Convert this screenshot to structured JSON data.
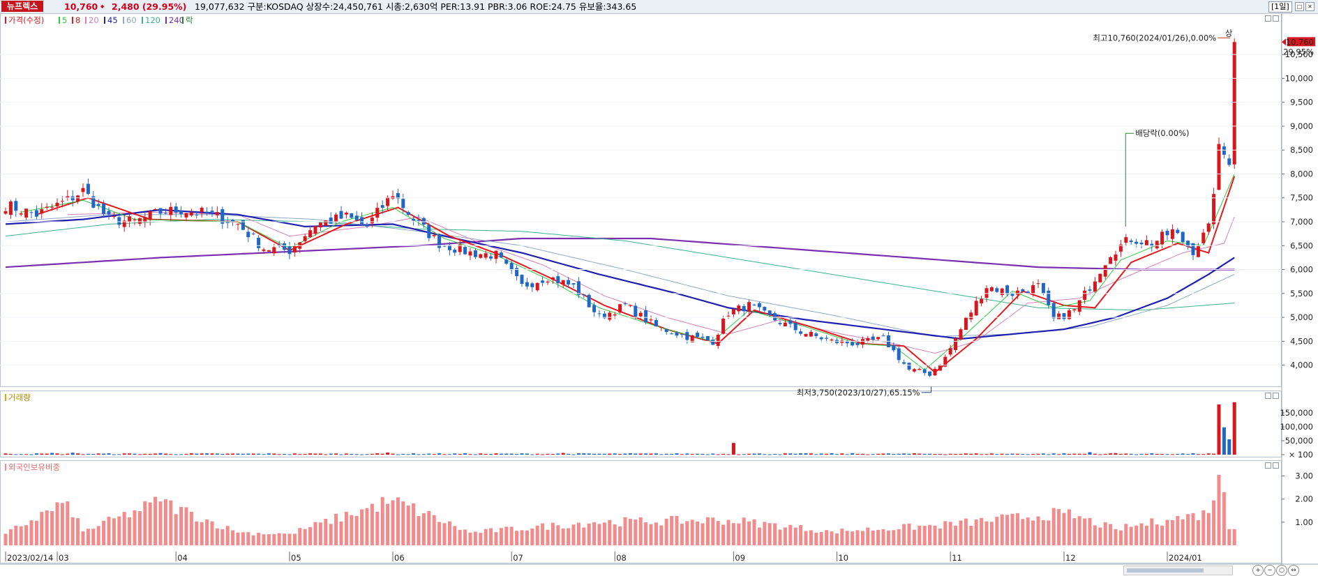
{
  "header": {
    "stock_name": "뉴프렉스",
    "price": "10,760",
    "change": "2,480 (29.95%)",
    "info": "19,077,632   구분:KOSDAQ  상장수:24,450,761  시총:2,630억  PER:13.91  PBR:3.06  ROE:24.75  유보율:343.65",
    "period": "[1일]"
  },
  "colors": {
    "up": "#d8161d",
    "down": "#1f66c5",
    "ma5": "#2ecc40",
    "ma8": "#e31a1c",
    "ma20": "#d97fb8",
    "ma45": "#1f1fb0",
    "ma60": "#8fa8c8",
    "ma120": "#3cb389",
    "ma240": "#7b2fb0",
    "volume_up": "#d8161d",
    "volume_down": "#1f66c5",
    "foreign_bar": "#f28b8b"
  },
  "icons": {
    "up_arrow": "up-arrow-icon",
    "restore": "restore-icon",
    "close": "close-icon",
    "zoom_in": "zoom-in-icon",
    "zoom_out": "zoom-out-icon"
  },
  "chart_data": [
    {
      "type": "candlestick",
      "legend": {
        "price": "가격(수정)",
        "ma": [
          "5",
          "8",
          "20",
          "45",
          "60",
          "120",
          "240"
        ],
        "ex": "락"
      },
      "y_ticks": [
        4000,
        4500,
        5000,
        5500,
        6000,
        6500,
        7000,
        7500,
        8000,
        8500,
        9000,
        9500,
        10000,
        10500
      ],
      "y_tick_labels": [
        "4,000",
        "4,500",
        "5,000",
        "5,500",
        "6,000",
        "6,500",
        "7,000",
        "7,500",
        "8,000",
        "8,500",
        "9,000",
        "9,500",
        "10,000",
        "10,500"
      ],
      "ylim": [
        3630,
        11100
      ],
      "x_labels": [
        "2023/02/14",
        "03",
        "04",
        "05",
        "06",
        "07",
        "08",
        "09",
        "10",
        "11",
        "12",
        "2024/01"
      ],
      "x_label_index": [
        0,
        10,
        33,
        55,
        75,
        98,
        118,
        141,
        161,
        183,
        205,
        225
      ],
      "n_days": 242,
      "current_price_label": "10,760",
      "current_change_label": "29.95%",
      "annotations": {
        "high": "최고10,760(2024/01/26),0.00%",
        "high_tag": "상",
        "low": "최저3,750(2023/10/27),65.15%",
        "dividend": "배당락(0.00%)"
      },
      "anchors": [
        [
          0,
          7350
        ],
        [
          6,
          7150
        ],
        [
          12,
          7450
        ],
        [
          15,
          7650
        ],
        [
          20,
          7050
        ],
        [
          25,
          7000
        ],
        [
          30,
          7200
        ],
        [
          34,
          7250
        ],
        [
          40,
          7150
        ],
        [
          45,
          6950
        ],
        [
          50,
          6450
        ],
        [
          55,
          6400
        ],
        [
          60,
          6950
        ],
        [
          66,
          7100
        ],
        [
          70,
          6900
        ],
        [
          75,
          7600
        ],
        [
          79,
          7050
        ],
        [
          84,
          6550
        ],
        [
          90,
          6350
        ],
        [
          95,
          6300
        ],
        [
          100,
          5650
        ],
        [
          105,
          5850
        ],
        [
          110,
          5650
        ],
        [
          115,
          5000
        ],
        [
          120,
          5250
        ],
        [
          126,
          4800
        ],
        [
          132,
          4600
        ],
        [
          137,
          4500
        ],
        [
          140,
          5100
        ],
        [
          144,
          5250
        ],
        [
          148,
          5000
        ],
        [
          154,
          4700
        ],
        [
          160,
          4500
        ],
        [
          165,
          4450
        ],
        [
          170,
          4550
        ],
        [
          175,
          3900
        ],
        [
          179,
          3820
        ],
        [
          182,
          4150
        ],
        [
          186,
          4950
        ],
        [
          190,
          5650
        ],
        [
          195,
          5500
        ],
        [
          200,
          5650
        ],
        [
          203,
          4950
        ],
        [
          207,
          5150
        ],
        [
          210,
          5650
        ],
        [
          214,
          6350
        ],
        [
          218,
          6650
        ],
        [
          222,
          6550
        ],
        [
          226,
          6800
        ],
        [
          230,
          6400
        ],
        [
          233,
          6850
        ],
        [
          235,
          8500
        ],
        [
          237,
          8300
        ],
        [
          238,
          10760
        ]
      ],
      "ma_anchors": {
        "ma5": [
          [
            3,
            7200
          ],
          [
            15,
            7450
          ],
          [
            25,
            7050
          ],
          [
            45,
            7000
          ],
          [
            55,
            6450
          ],
          [
            65,
            7000
          ],
          [
            75,
            7300
          ],
          [
            85,
            6650
          ],
          [
            95,
            6300
          ],
          [
            105,
            5800
          ],
          [
            115,
            5200
          ],
          [
            128,
            4750
          ],
          [
            137,
            4500
          ],
          [
            144,
            5150
          ],
          [
            155,
            4800
          ],
          [
            165,
            4450
          ],
          [
            172,
            4400
          ],
          [
            178,
            3900
          ],
          [
            186,
            4650
          ],
          [
            195,
            5550
          ],
          [
            203,
            5200
          ],
          [
            210,
            5350
          ],
          [
            216,
            6200
          ],
          [
            225,
            6600
          ],
          [
            232,
            6500
          ],
          [
            238,
            8000
          ]
        ],
        "ma8": [
          [
            6,
            7150
          ],
          [
            16,
            7500
          ],
          [
            28,
            7050
          ],
          [
            45,
            7000
          ],
          [
            55,
            6400
          ],
          [
            66,
            6950
          ],
          [
            76,
            7300
          ],
          [
            86,
            6700
          ],
          [
            96,
            6300
          ],
          [
            106,
            5800
          ],
          [
            116,
            5250
          ],
          [
            128,
            4750
          ],
          [
            138,
            4450
          ],
          [
            145,
            5150
          ],
          [
            156,
            4800
          ],
          [
            166,
            4450
          ],
          [
            174,
            4400
          ],
          [
            180,
            3850
          ],
          [
            188,
            4550
          ],
          [
            197,
            5550
          ],
          [
            205,
            5250
          ],
          [
            211,
            5200
          ],
          [
            218,
            6150
          ],
          [
            227,
            6550
          ],
          [
            233,
            6350
          ],
          [
            238,
            7950
          ]
        ],
        "ma20": [
          [
            12,
            7150
          ],
          [
            28,
            7200
          ],
          [
            45,
            7150
          ],
          [
            55,
            6700
          ],
          [
            70,
            6900
          ],
          [
            80,
            7100
          ],
          [
            92,
            6550
          ],
          [
            104,
            6100
          ],
          [
            116,
            5450
          ],
          [
            128,
            5000
          ],
          [
            140,
            4650
          ],
          [
            150,
            4950
          ],
          [
            162,
            4650
          ],
          [
            172,
            4450
          ],
          [
            180,
            4250
          ],
          [
            188,
            4500
          ],
          [
            198,
            5300
          ],
          [
            208,
            5400
          ],
          [
            216,
            5800
          ],
          [
            228,
            6350
          ],
          [
            236,
            6550
          ],
          [
            238,
            7100
          ]
        ],
        "ma45": [
          [
            0,
            6950
          ],
          [
            15,
            7050
          ],
          [
            30,
            7250
          ],
          [
            45,
            7150
          ],
          [
            58,
            6900
          ],
          [
            75,
            6950
          ],
          [
            85,
            6700
          ],
          [
            100,
            6350
          ],
          [
            115,
            5900
          ],
          [
            130,
            5500
          ],
          [
            140,
            5200
          ],
          [
            155,
            4950
          ],
          [
            170,
            4750
          ],
          [
            185,
            4550
          ],
          [
            195,
            4650
          ],
          [
            205,
            4750
          ],
          [
            215,
            5000
          ],
          [
            225,
            5400
          ],
          [
            233,
            5900
          ],
          [
            238,
            6250
          ]
        ],
        "ma60": [
          [
            0,
            7000
          ],
          [
            20,
            7150
          ],
          [
            40,
            7150
          ],
          [
            60,
            7050
          ],
          [
            80,
            6800
          ],
          [
            100,
            6500
          ],
          [
            120,
            6000
          ],
          [
            140,
            5450
          ],
          [
            160,
            5050
          ],
          [
            180,
            4600
          ],
          [
            195,
            4650
          ],
          [
            210,
            4800
          ],
          [
            225,
            5250
          ],
          [
            238,
            5900
          ]
        ],
        "ma120": [
          [
            0,
            6700
          ],
          [
            20,
            6950
          ],
          [
            40,
            7050
          ],
          [
            60,
            7000
          ],
          [
            80,
            6850
          ],
          [
            100,
            6800
          ],
          [
            120,
            6600
          ],
          [
            140,
            6250
          ],
          [
            160,
            5900
          ],
          [
            180,
            5550
          ],
          [
            200,
            5200
          ],
          [
            220,
            5150
          ],
          [
            238,
            5300
          ]
        ],
        "ma240": [
          [
            0,
            6050
          ],
          [
            30,
            6250
          ],
          [
            60,
            6400
          ],
          [
            80,
            6500
          ],
          [
            100,
            6650
          ],
          [
            125,
            6650
          ],
          [
            150,
            6450
          ],
          [
            175,
            6250
          ],
          [
            200,
            6050
          ],
          [
            220,
            6000
          ],
          [
            238,
            6000
          ]
        ]
      }
    },
    {
      "type": "bar",
      "legend": "거래량",
      "y_ticks": [
        100,
        50000,
        100000,
        150000
      ],
      "y_tick_labels": [
        "× 100",
        "50,000",
        "100,000",
        "150,000"
      ],
      "ylim": [
        0,
        190000
      ],
      "spike_days": [
        [
          9,
          6000
        ],
        [
          13,
          7000
        ],
        [
          30,
          5500
        ],
        [
          74,
          7500
        ],
        [
          108,
          6000
        ],
        [
          141,
          42000
        ],
        [
          210,
          9000
        ],
        [
          215,
          5500
        ],
        [
          235,
          180000
        ],
        [
          236,
          98000
        ],
        [
          237,
          55000
        ],
        [
          238,
          188000
        ]
      ]
    },
    {
      "type": "bar",
      "legend": "외국인보유비중",
      "y_ticks": [
        1.0,
        2.0,
        3.0
      ],
      "y_tick_labels": [
        "1.00",
        "2.00",
        "3.00"
      ],
      "ylim": [
        0,
        3.35
      ],
      "anchors": [
        [
          0,
          0.5
        ],
        [
          12,
          1.9
        ],
        [
          15,
          0.6
        ],
        [
          30,
          1.9
        ],
        [
          45,
          0.55
        ],
        [
          55,
          0.5
        ],
        [
          75,
          1.95
        ],
        [
          90,
          0.55
        ],
        [
          114,
          1.0
        ],
        [
          140,
          1.1
        ],
        [
          160,
          0.6
        ],
        [
          180,
          0.85
        ],
        [
          205,
          1.4
        ],
        [
          215,
          0.7
        ],
        [
          225,
          1.1
        ],
        [
          233,
          1.4
        ],
        [
          235,
          3.05
        ],
        [
          236,
          2.3
        ],
        [
          237,
          0.7
        ],
        [
          238,
          0.7
        ]
      ]
    }
  ]
}
